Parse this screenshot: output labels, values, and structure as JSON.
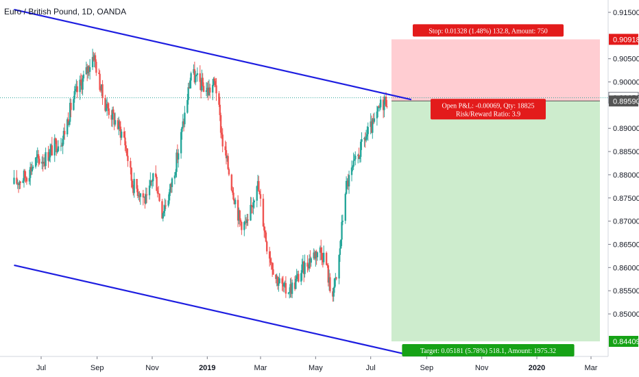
{
  "title": "Euro / British Pound, 1D, OANDA",
  "colors": {
    "up": "#26a69a",
    "down": "#ef5350",
    "trendline": "#1d1de0",
    "stop_zone": "#ffcdd2",
    "target_zone": "#cdeccd",
    "stop_badge": "#e31b1b",
    "target_badge": "#16a216",
    "pnl_badge": "#e31b1b",
    "price_line": "#2aa39a",
    "axis_bg": "#ffffff",
    "grid_text": "#131722"
  },
  "chart_data": {
    "type": "candlestick",
    "symbol": "Euro / British Pound",
    "interval": "1D",
    "source": "OANDA",
    "y_ticks": [
      "0.91500",
      "0.90500",
      "0.90000",
      "0.89000",
      "0.88500",
      "0.88000",
      "0.87500",
      "0.87000",
      "0.86500",
      "0.86000",
      "0.85500",
      "0.85000"
    ],
    "ylim": [
      0.8404,
      0.9168
    ],
    "x_ticks": [
      {
        "label": "Jul",
        "date": "2018-07-01",
        "bold": false
      },
      {
        "label": "Sep",
        "date": "2018-09-01",
        "bold": false
      },
      {
        "label": "Nov",
        "date": "2018-11-01",
        "bold": false
      },
      {
        "label": "2019",
        "date": "2019-01-01",
        "bold": true
      },
      {
        "label": "Mar",
        "date": "2019-03-01",
        "bold": false
      },
      {
        "label": "May",
        "date": "2019-05-01",
        "bold": false
      },
      {
        "label": "Jul",
        "date": "2019-07-01",
        "bold": false
      },
      {
        "label": "Sep",
        "date": "2019-09-01",
        "bold": false
      },
      {
        "label": "Nov",
        "date": "2019-11-01",
        "bold": false
      },
      {
        "label": "2020",
        "date": "2020-01-01",
        "bold": true
      },
      {
        "label": "Mar",
        "date": "2020-03-01",
        "bold": false
      }
    ],
    "xlim": [
      "2018-06-01",
      "2020-03-20"
    ],
    "price_path": [
      [
        "2018-06-01",
        0.878
      ],
      [
        "2018-06-15",
        0.88
      ],
      [
        "2018-06-25",
        0.883
      ],
      [
        "2018-07-05",
        0.8835
      ],
      [
        "2018-07-15",
        0.886
      ],
      [
        "2018-07-25",
        0.888
      ],
      [
        "2018-08-05",
        0.896
      ],
      [
        "2018-08-20",
        0.902
      ],
      [
        "2018-08-28",
        0.906
      ],
      [
        "2018-09-08",
        0.896
      ],
      [
        "2018-09-20",
        0.892
      ],
      [
        "2018-10-01",
        0.888
      ],
      [
        "2018-10-10",
        0.878
      ],
      [
        "2018-10-20",
        0.876
      ],
      [
        "2018-10-26",
        0.874
      ],
      [
        "2018-11-03",
        0.881
      ],
      [
        "2018-11-12",
        0.872
      ],
      [
        "2018-11-20",
        0.876
      ],
      [
        "2018-11-30",
        0.885
      ],
      [
        "2018-12-08",
        0.894
      ],
      [
        "2018-12-14",
        0.902
      ],
      [
        "2018-12-22",
        0.9
      ],
      [
        "2019-01-02",
        0.898
      ],
      [
        "2019-01-10",
        0.9
      ],
      [
        "2019-01-18",
        0.887
      ],
      [
        "2019-01-28",
        0.878
      ],
      [
        "2019-02-06",
        0.87
      ],
      [
        "2019-02-15",
        0.869
      ],
      [
        "2019-02-25",
        0.879
      ],
      [
        "2019-03-08",
        0.865
      ],
      [
        "2019-03-18",
        0.858
      ],
      [
        "2019-03-28",
        0.855
      ],
      [
        "2019-04-06",
        0.856
      ],
      [
        "2019-04-15",
        0.859
      ],
      [
        "2019-04-25",
        0.862
      ],
      [
        "2019-05-05",
        0.864
      ],
      [
        "2019-05-12",
        0.862
      ],
      [
        "2019-05-18",
        0.854
      ],
      [
        "2019-05-25",
        0.858
      ],
      [
        "2019-06-03",
        0.877
      ],
      [
        "2019-06-15",
        0.883
      ],
      [
        "2019-06-25",
        0.888
      ],
      [
        "2019-07-05",
        0.891
      ],
      [
        "2019-07-12",
        0.895
      ],
      [
        "2019-07-20",
        0.8965
      ]
    ],
    "trendlines": [
      {
        "name": "upper",
        "from": [
          "2018-06-01",
          0.9156
        ],
        "to": [
          "2019-08-15",
          0.8962
        ]
      },
      {
        "name": "lower",
        "from": [
          "2018-06-01",
          0.8605
        ],
        "to": [
          "2019-09-01",
          0.8403
        ]
      }
    ],
    "position": {
      "type": "long",
      "start": "2019-07-24",
      "end": "2020-03-20",
      "entry": 0.8959,
      "stop": 0.90918,
      "target": 0.84409
    },
    "price_labels": [
      {
        "value": 0.90918,
        "text": "0.90918",
        "style": "stop"
      },
      {
        "value": 0.89659,
        "text": "0.89659",
        "style": "current"
      },
      {
        "value": 0.8959,
        "text": "0.89590",
        "style": "entry"
      },
      {
        "value": 0.84409,
        "text": "0.84409",
        "style": "target"
      }
    ]
  },
  "trade_labels": {
    "stop": "Stop: 0.01328 (1.48%) 132.8, Amount: 750",
    "pnl_line1": "Open P&L: -0.00069, Qty: 18825",
    "pnl_line2": "Risk/Reward Ratio: 3.9",
    "target": "Target: 0.05181 (5.78%) 518.1, Amount: 1975.32"
  }
}
